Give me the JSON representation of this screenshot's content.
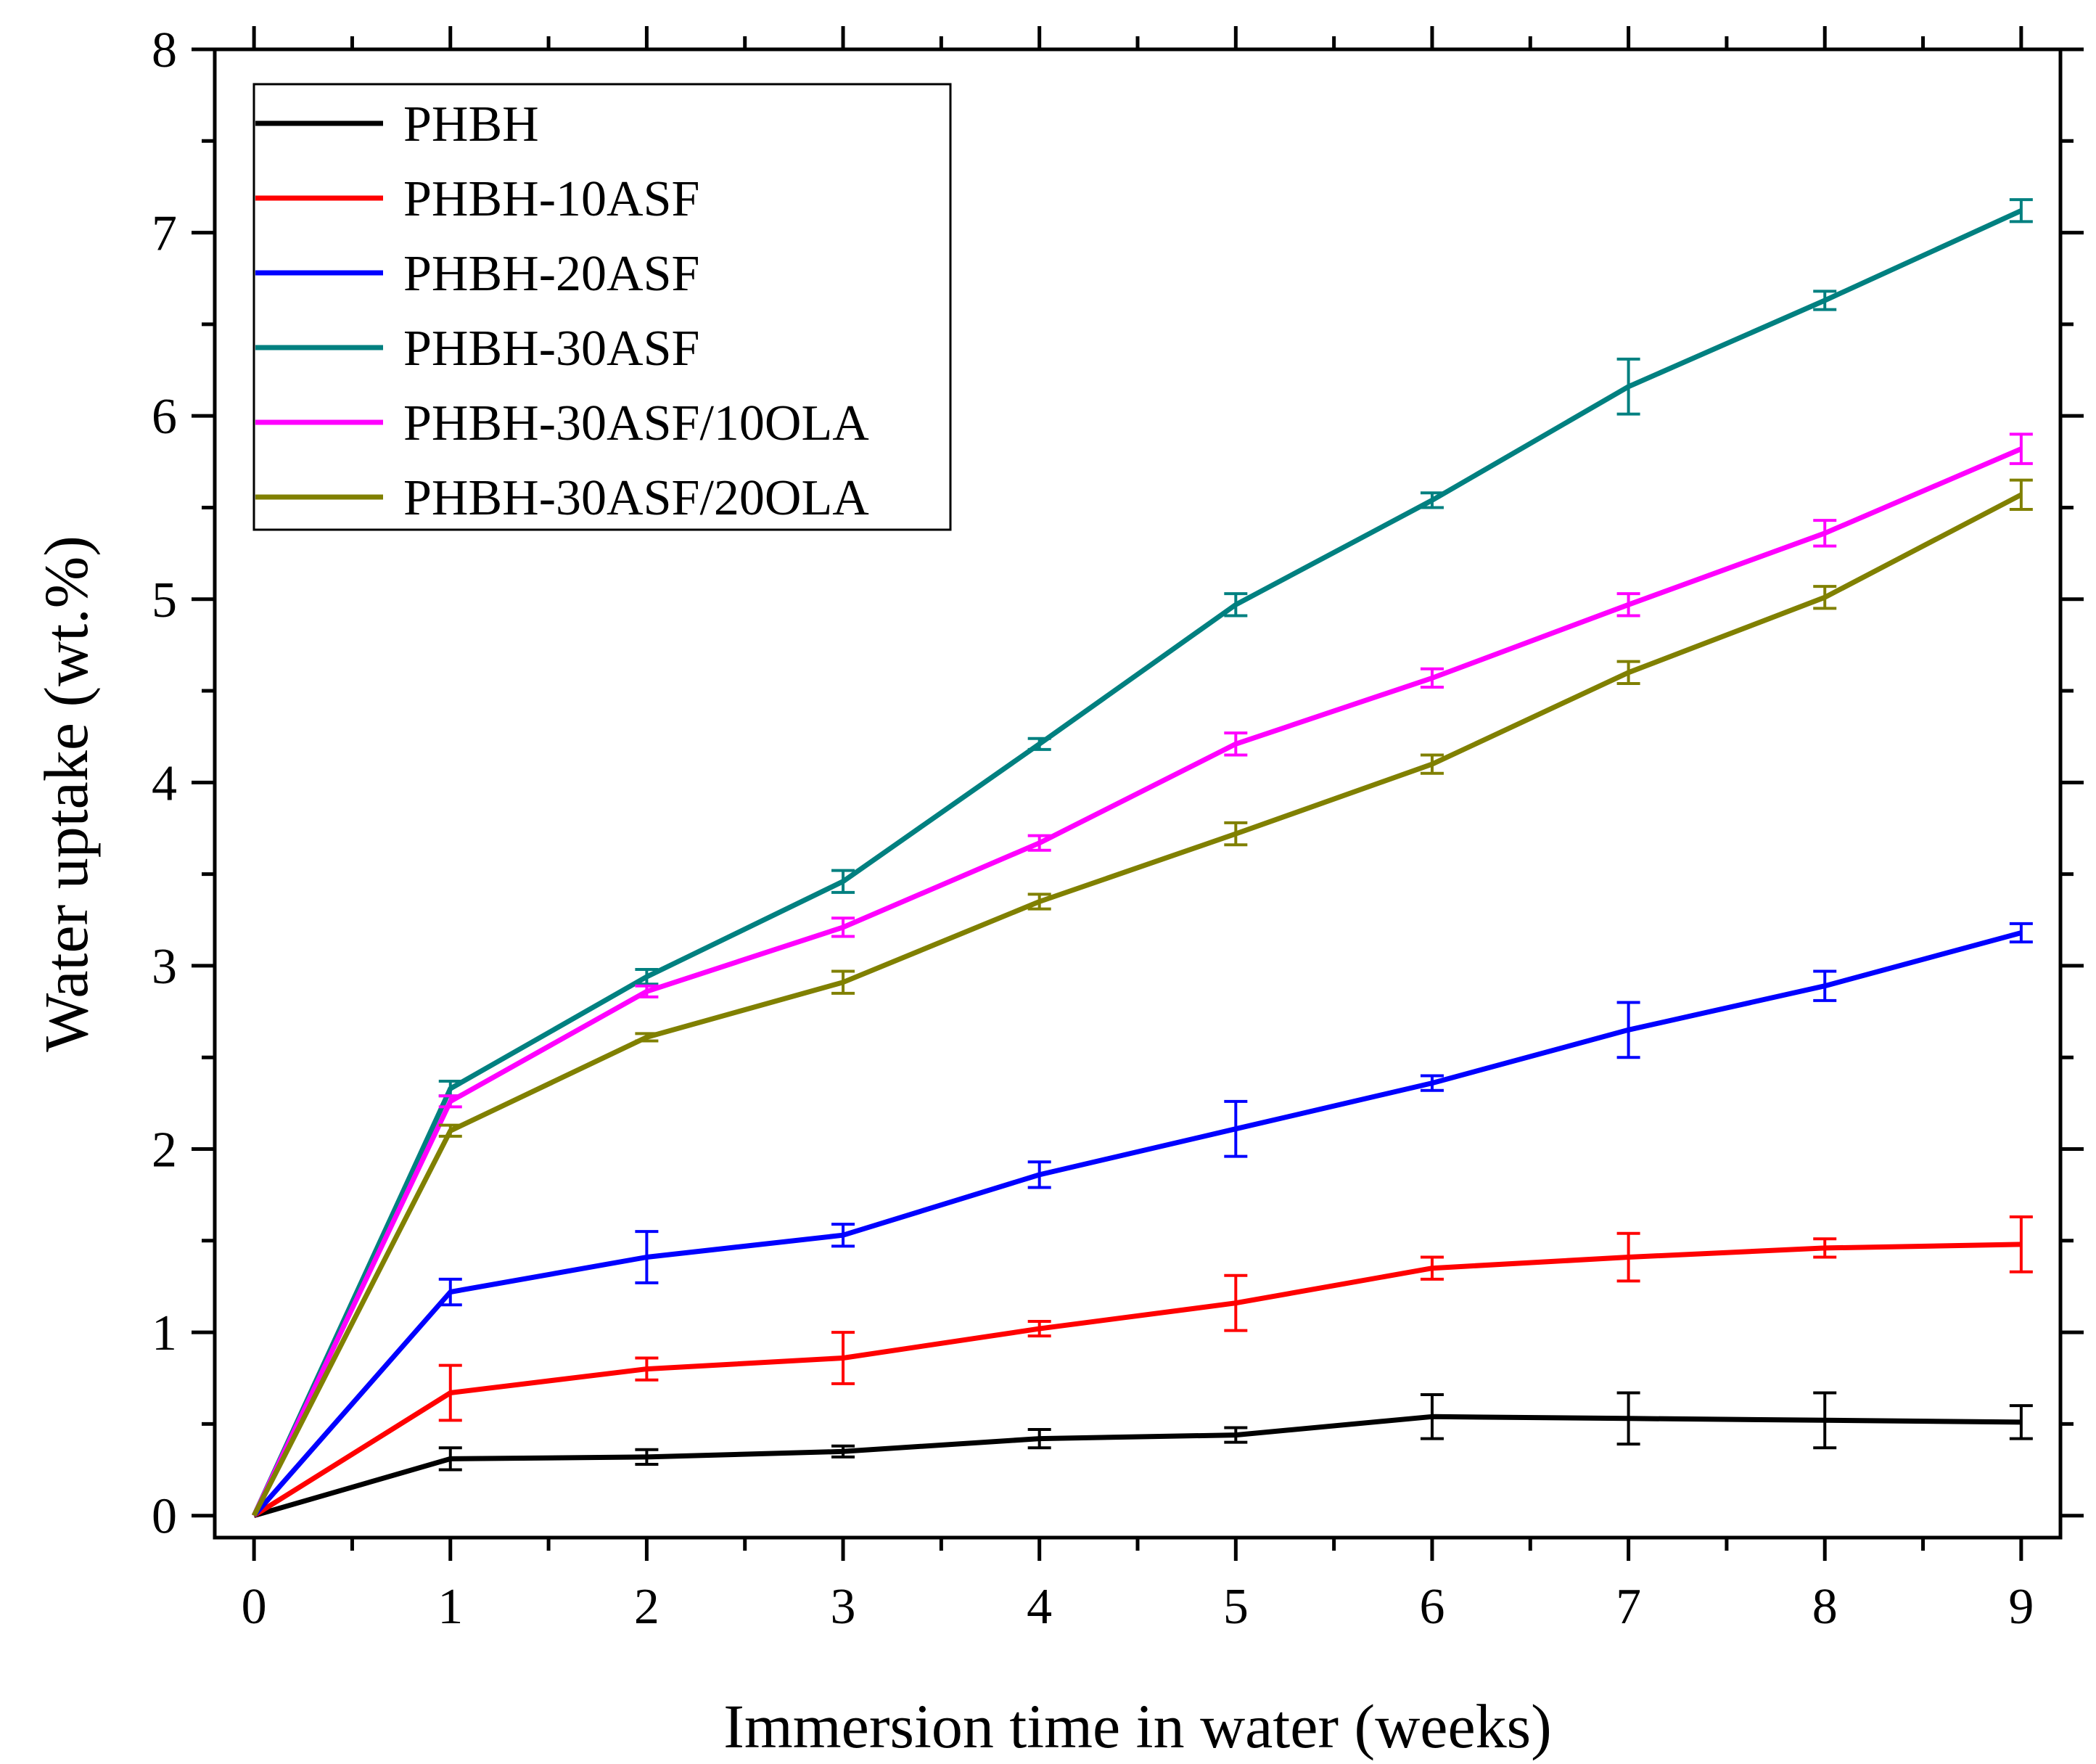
{
  "chart_data": {
    "type": "line",
    "title": "",
    "xlabel": "Immersion time in water (weeks)",
    "ylabel": "Water uptake (wt.%)",
    "xlim": [
      -0.2,
      9.2
    ],
    "ylim": [
      -0.12,
      8.0
    ],
    "x_ticks": [
      "0",
      "1",
      "2",
      "3",
      "4",
      "5",
      "6",
      "7",
      "8",
      "9"
    ],
    "y_ticks": [
      "0",
      "1",
      "2",
      "3",
      "4",
      "5",
      "6",
      "7",
      "8"
    ],
    "legend_position": "top-left",
    "x": [
      0,
      1,
      2,
      3,
      4,
      5,
      6,
      7,
      8,
      9
    ],
    "series": [
      {
        "name": "PHBH",
        "color": "#000000",
        "values": [
          0,
          0.31,
          0.32,
          0.35,
          0.42,
          0.44,
          0.54,
          0.53,
          0.52,
          0.51
        ],
        "errors": [
          0,
          0.06,
          0.04,
          0.03,
          0.05,
          0.04,
          0.12,
          0.14,
          0.15,
          0.09
        ]
      },
      {
        "name": "PHBH-10ASF",
        "color": "#ff0000",
        "values": [
          0,
          0.67,
          0.8,
          0.86,
          1.02,
          1.16,
          1.35,
          1.41,
          1.46,
          1.48
        ],
        "errors": [
          0,
          0.15,
          0.06,
          0.14,
          0.04,
          0.15,
          0.06,
          0.13,
          0.05,
          0.15
        ]
      },
      {
        "name": "PHBH-20ASF",
        "color": "#0000ff",
        "values": [
          0,
          1.22,
          1.41,
          1.53,
          1.86,
          2.11,
          2.36,
          2.65,
          2.89,
          3.18
        ],
        "errors": [
          0,
          0.07,
          0.14,
          0.06,
          0.07,
          0.15,
          0.04,
          0.15,
          0.08,
          0.05
        ]
      },
      {
        "name": "PHBH-30ASF",
        "color": "#008080",
        "values": [
          0,
          2.33,
          2.94,
          3.46,
          4.21,
          4.97,
          5.54,
          6.16,
          6.63,
          7.12
        ],
        "errors": [
          0,
          0.04,
          0.04,
          0.06,
          0.03,
          0.06,
          0.04,
          0.15,
          0.05,
          0.06
        ]
      },
      {
        "name": "PHBH-30ASF/10OLA",
        "color": "#ff00ff",
        "values": [
          0,
          2.26,
          2.86,
          3.21,
          3.67,
          4.21,
          4.57,
          4.97,
          5.36,
          5.82
        ],
        "errors": [
          0,
          0.03,
          0.03,
          0.05,
          0.04,
          0.06,
          0.05,
          0.06,
          0.07,
          0.08
        ]
      },
      {
        "name": "PHBH-30ASF/20OLA",
        "color": "#808000",
        "values": [
          0,
          2.1,
          2.61,
          2.91,
          3.35,
          3.72,
          4.1,
          4.6,
          5.01,
          5.57
        ],
        "errors": [
          0,
          0.03,
          0.02,
          0.06,
          0.04,
          0.06,
          0.05,
          0.06,
          0.06,
          0.08
        ]
      }
    ]
  }
}
